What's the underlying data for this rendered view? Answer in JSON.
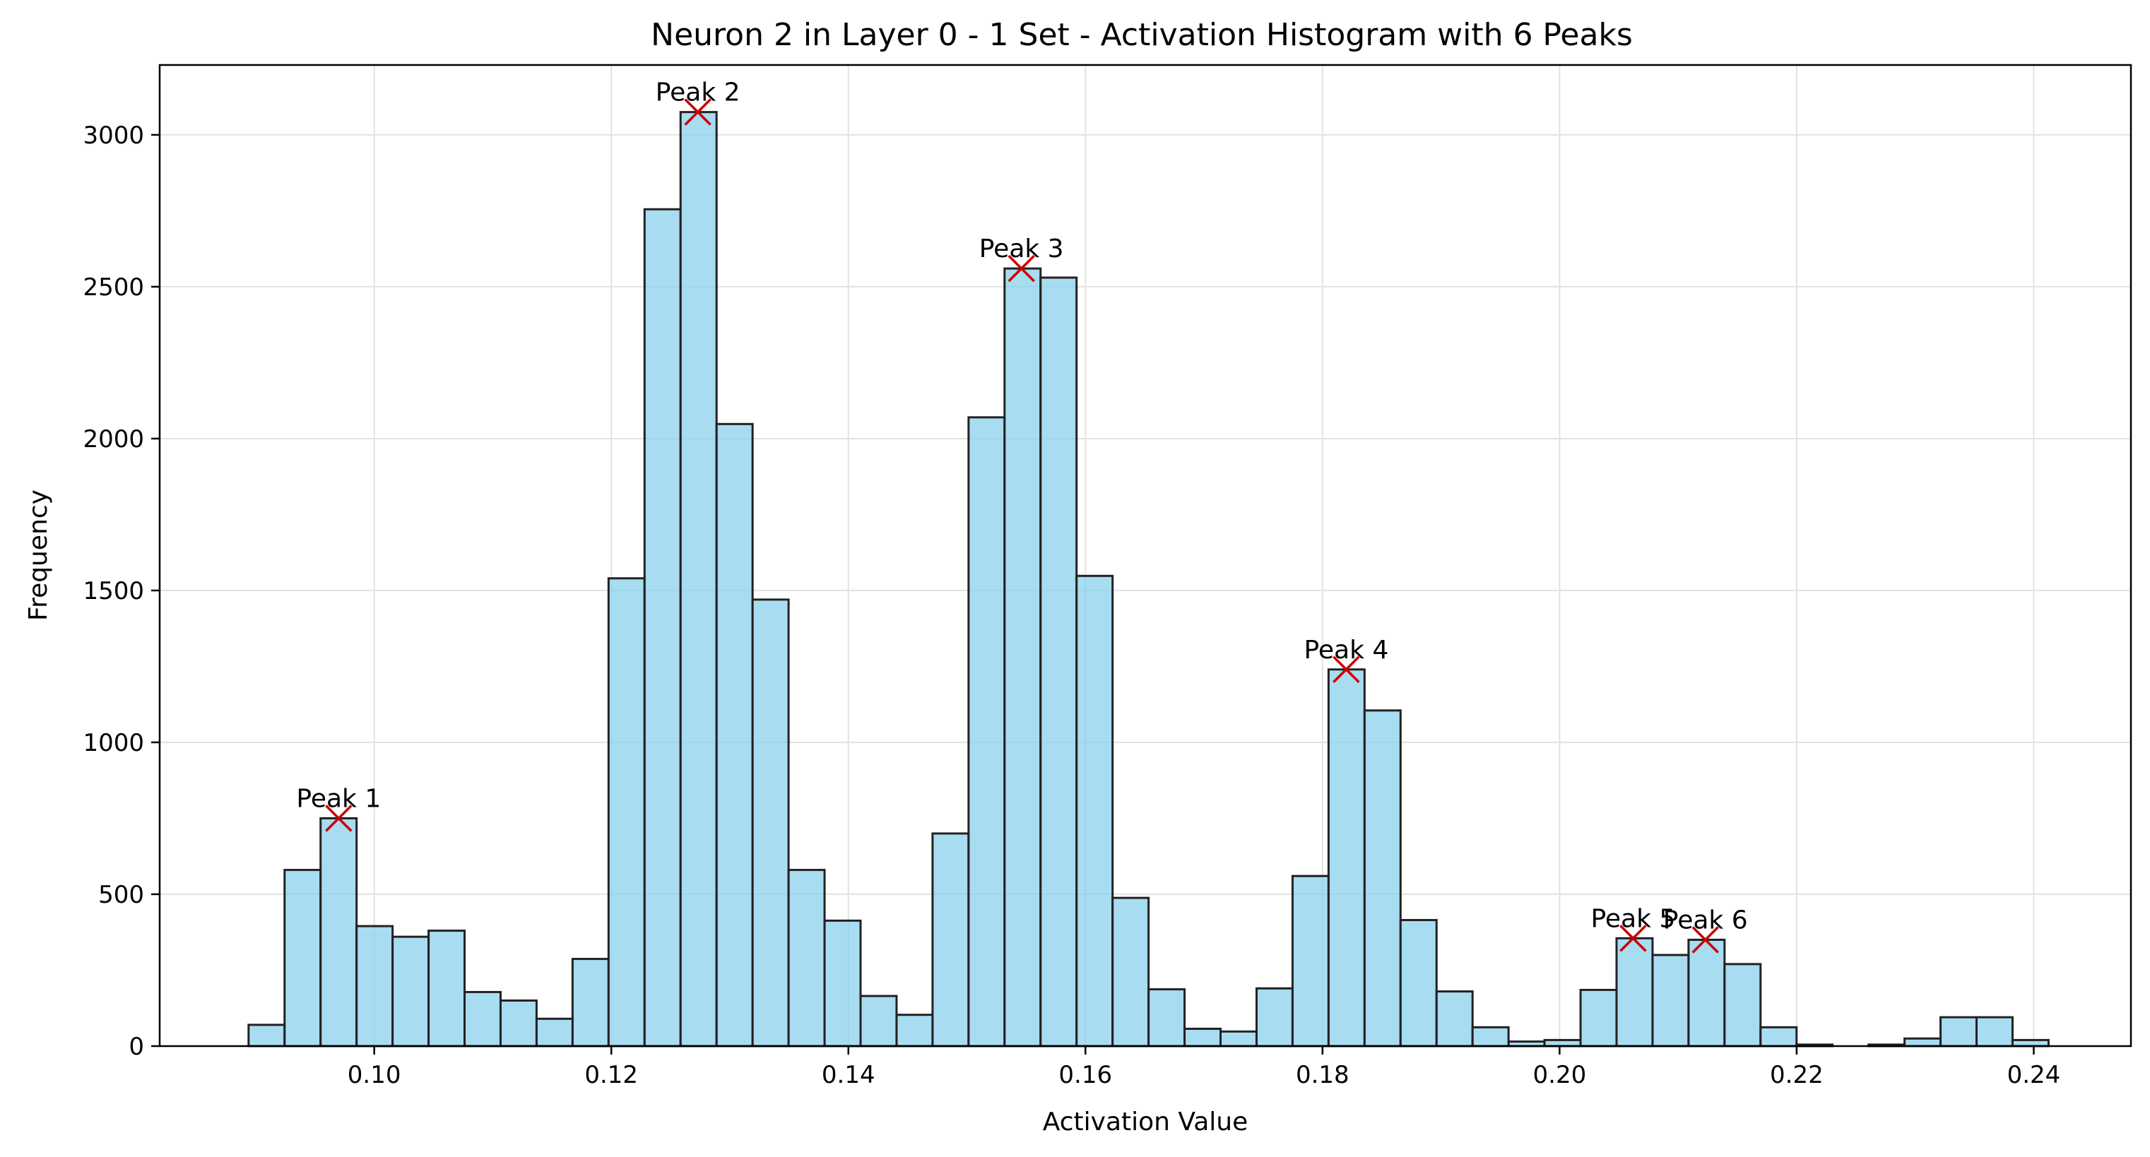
{
  "chart_data": {
    "type": "bar",
    "title": "Neuron 2 in Layer 0 - 1 Set - Activation Histogram with 6 Peaks",
    "xlabel": "Activation Value",
    "ylabel": "Frequency",
    "xlim": [
      0.0819,
      0.2482
    ],
    "ylim": [
      0,
      3230
    ],
    "grid": true,
    "x_ticks": [
      0.1,
      0.12,
      0.14,
      0.16,
      0.18,
      0.2,
      0.22,
      0.24
    ],
    "x_tick_labels": [
      "0.10",
      "0.12",
      "0.14",
      "0.16",
      "0.18",
      "0.20",
      "0.22",
      "0.24"
    ],
    "y_ticks": [
      0,
      500,
      1000,
      1500,
      2000,
      2500,
      3000
    ],
    "y_tick_labels": [
      "0",
      "500",
      "1000",
      "1500",
      "2000",
      "2500",
      "3000"
    ],
    "bin_start": 0.0894,
    "bin_width": 0.003037,
    "values": [
      70,
      580,
      750,
      395,
      360,
      380,
      178,
      150,
      90,
      287,
      1540,
      2755,
      3075,
      2048,
      1470,
      580,
      413,
      165,
      103,
      700,
      2070,
      2560,
      2530,
      1548,
      488,
      187,
      57,
      48,
      190,
      560,
      1240,
      1105,
      415,
      180,
      62,
      15,
      20,
      185,
      355,
      300,
      350,
      270,
      62,
      5,
      0,
      5,
      25,
      95,
      95,
      20
    ],
    "bar_color": "#87CEEB",
    "bar_edge_color": "#222222",
    "peak_marker_color": "#cc0000",
    "peaks": [
      {
        "label": "Peak 1",
        "x": 0.097,
        "y": 750
      },
      {
        "label": "Peak 2",
        "x": 0.1273,
        "y": 3075
      },
      {
        "label": "Peak 3",
        "x": 0.1546,
        "y": 2560
      },
      {
        "label": "Peak 4",
        "x": 0.182,
        "y": 1240
      },
      {
        "label": "Peak 5",
        "x": 0.2062,
        "y": 355
      },
      {
        "label": "Peak 6",
        "x": 0.2123,
        "y": 350
      }
    ]
  }
}
